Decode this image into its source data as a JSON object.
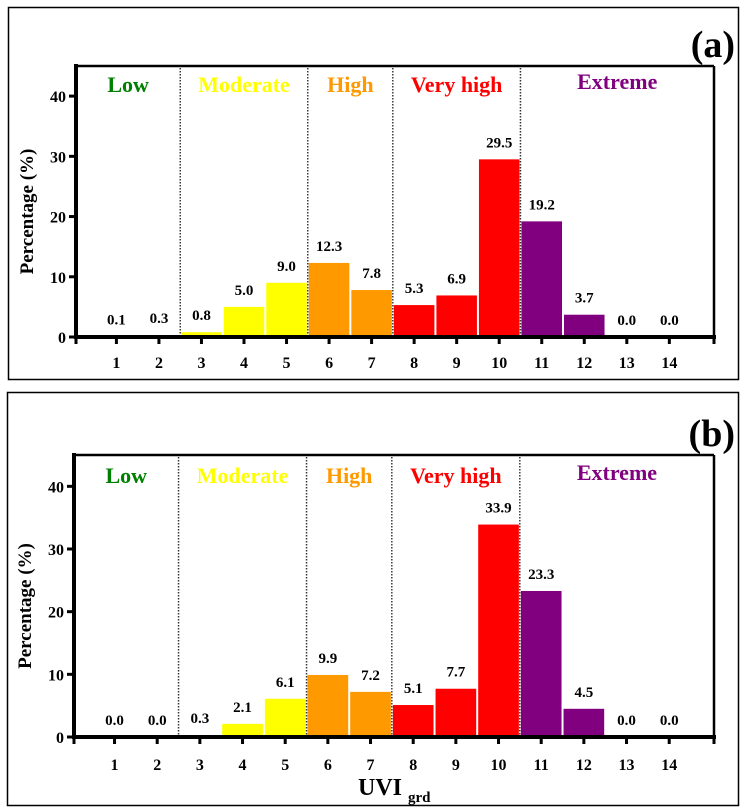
{
  "chart_data": [
    {
      "type": "bar",
      "panel_label": "(a)",
      "categories": [
        "1",
        "2",
        "3",
        "4",
        "5",
        "6",
        "7",
        "8",
        "9",
        "10",
        "11",
        "12",
        "13",
        "14"
      ],
      "values": [
        0.1,
        0.3,
        0.8,
        5.0,
        9.0,
        12.3,
        7.8,
        5.3,
        6.9,
        29.5,
        19.2,
        3.7,
        0.0,
        0.0
      ],
      "value_labels": [
        "0.1",
        "0.3",
        "0.8",
        "5.0",
        "9.0",
        "12.3",
        "7.8",
        "5.3",
        "6.9",
        "29.5",
        "19.2",
        "3.7",
        "0.0",
        "0.0"
      ],
      "ylabel": "Percentage (%)",
      "xlabel": "",
      "xlabel_sub": "",
      "ylim": [
        0,
        45
      ],
      "yticks": [
        0,
        10,
        20,
        30,
        40
      ],
      "grid": false
    },
    {
      "type": "bar",
      "panel_label": "(b)",
      "categories": [
        "1",
        "2",
        "3",
        "4",
        "5",
        "6",
        "7",
        "8",
        "9",
        "10",
        "11",
        "12",
        "13",
        "14"
      ],
      "values": [
        0.0,
        0.0,
        0.3,
        2.1,
        6.1,
        9.9,
        7.2,
        5.1,
        7.7,
        33.9,
        23.3,
        4.5,
        0.0,
        0.0
      ],
      "value_labels": [
        "0.0",
        "0.0",
        "0.3",
        "2.1",
        "6.1",
        "9.9",
        "7.2",
        "5.1",
        "7.7",
        "33.9",
        "23.3",
        "4.5",
        "0.0",
        "0.0"
      ],
      "ylabel": "Percentage (%)",
      "xlabel": "UVI",
      "xlabel_sub": "grd",
      "ylim": [
        0,
        45
      ],
      "yticks": [
        0,
        10,
        20,
        30,
        40
      ],
      "grid": false
    }
  ],
  "risk_categories": [
    {
      "name": "Low",
      "color": "#008000",
      "from": 0.5,
      "to": 2.5
    },
    {
      "name": "Moderate",
      "color": "#ffff00",
      "from": 2.5,
      "to": 5.5
    },
    {
      "name": "High",
      "color": "#ff9900",
      "from": 5.5,
      "to": 7.5
    },
    {
      "name": "Very high",
      "color": "#ff0000",
      "from": 7.5,
      "to": 10.5
    },
    {
      "name": "Extreme",
      "color": "#800080",
      "from": 10.5,
      "to": 14.5
    }
  ],
  "bar_category_index": [
    0,
    0,
    1,
    1,
    1,
    2,
    2,
    3,
    3,
    3,
    4,
    4,
    4,
    4
  ]
}
